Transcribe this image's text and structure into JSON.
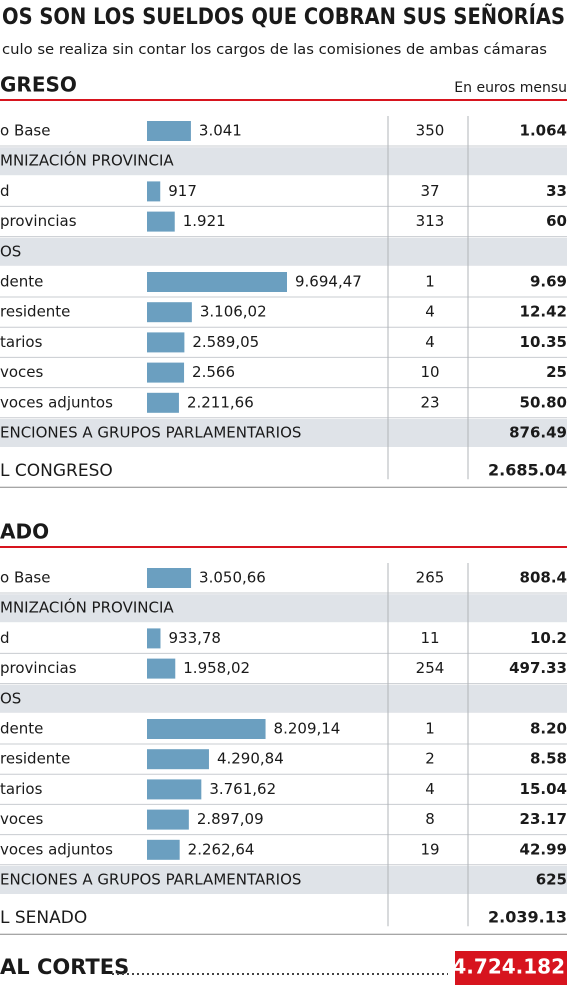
{
  "header": {
    "title": "OS SON LOS SUELDOS QUE COBRAN SUS SEÑORÍAS",
    "subtitle": "culo se realiza sin contar los cargos de las comisiones de ambas cámaras",
    "unit_note": "En euros mensu"
  },
  "sections": [
    {
      "title": "GRESO",
      "rows": [
        {
          "label": "o Base",
          "amount": {
            "value": 3041,
            "label": "3.041"
          },
          "count": 350,
          "total": "1.064"
        },
        {
          "label": "MNIZACIÓN PROVINCIA"
        },
        {
          "label": "d",
          "amount": {
            "value": 917,
            "label": "917"
          },
          "count": 37,
          "total": "33"
        },
        {
          "label": "provincias",
          "amount": {
            "value": 1921,
            "label": "1.921"
          },
          "count": 313,
          "total": "60"
        },
        {
          "label": "OS"
        },
        {
          "label": "dente",
          "amount": {
            "value": 9694.47,
            "label": "9.694,47"
          },
          "count": 1,
          "total": "9.69"
        },
        {
          "label": "residente",
          "amount": {
            "value": 3106.02,
            "label": "3.106,02"
          },
          "count": 4,
          "total": "12.42"
        },
        {
          "label": "tarios",
          "amount": {
            "value": 2589.05,
            "label": "2.589,05"
          },
          "count": 4,
          "total": "10.35"
        },
        {
          "label": "voces",
          "amount": {
            "value": 2566,
            "label": "2.566"
          },
          "count": 10,
          "total": "25"
        },
        {
          "label": "voces adjuntos",
          "amount": {
            "value": 2211.66,
            "label": "2.211,66"
          },
          "count": 23,
          "total": "50.80"
        },
        {
          "label": "ENCIONES A GRUPOS PARLAMENTARIOS",
          "total": "876.49"
        }
      ],
      "total_row": {
        "label": "L CONGRESO",
        "total": "2.685.04"
      }
    },
    {
      "title": "ADO",
      "rows": [
        {
          "label": "o Base",
          "amount": {
            "value": 3050.66,
            "label": "3.050,66"
          },
          "count": 265,
          "total": "808.4"
        },
        {
          "label": "MNIZACIÓN PROVINCIA"
        },
        {
          "label": "d",
          "amount": {
            "value": 933.78,
            "label": "933,78"
          },
          "count": 11,
          "total": "10.2"
        },
        {
          "label": "provincias",
          "amount": {
            "value": 1958.02,
            "label": "1.958,02"
          },
          "count": 254,
          "total": "497.33"
        },
        {
          "label": "OS"
        },
        {
          "label": "dente",
          "amount": {
            "value": 8209.14,
            "label": "8.209,14"
          },
          "count": 1,
          "total": "8.20"
        },
        {
          "label": "residente",
          "amount": {
            "value": 4290.84,
            "label": "4.290,84"
          },
          "count": 2,
          "total": "8.58"
        },
        {
          "label": "tarios",
          "amount": {
            "value": 3761.62,
            "label": "3.761,62"
          },
          "count": 4,
          "total": "15.04"
        },
        {
          "label": "voces",
          "amount": {
            "value": 2897.09,
            "label": "2.897,09"
          },
          "count": 8,
          "total": "23.17"
        },
        {
          "label": "voces adjuntos",
          "amount": {
            "value": 2262.64,
            "label": "2.262,64"
          },
          "count": 19,
          "total": "42.99"
        },
        {
          "label": "ENCIONES A GRUPOS PARLAMENTARIOS",
          "total": "625"
        }
      ],
      "total_row": {
        "label": "L SENADO",
        "total": "2.039.13"
      }
    }
  ],
  "grand_total": {
    "label": "AL CORTES",
    "total": "4.724.182"
  }
}
